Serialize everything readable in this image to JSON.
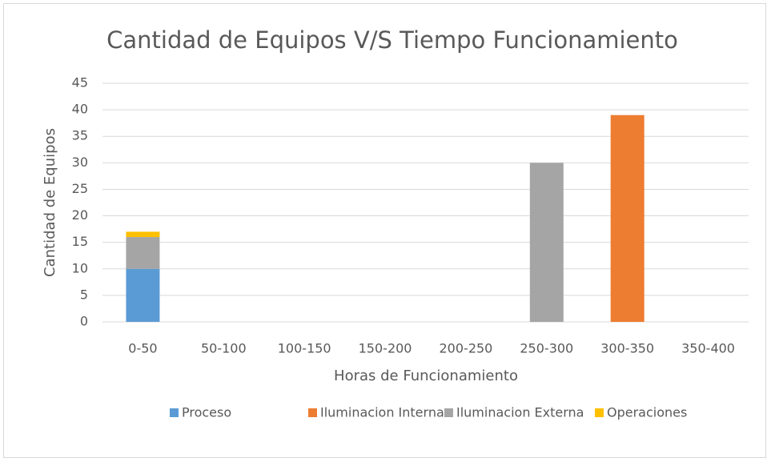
{
  "chart_data": {
    "type": "stacked_bar",
    "title": "Cantidad de Equipos V/S Tiempo Funcionamiento",
    "x_label": "Horas de Funcionamiento",
    "y_label": "Cantidad de Equipos",
    "categories": [
      "0-50",
      "50-100",
      "100-150",
      "150-200",
      "200-250",
      "250-300",
      "300-350",
      "350-400"
    ],
    "series": [
      {
        "name": "Proceso",
        "color": "#5b9bd5",
        "values": [
          10,
          0,
          0,
          0,
          0,
          0,
          0,
          0
        ]
      },
      {
        "name": "Iluminacion Interna",
        "color": "#ed7d31",
        "values": [
          0,
          0,
          0,
          0,
          0,
          0,
          39,
          0
        ]
      },
      {
        "name": "Iluminacion Externa",
        "color": "#a5a5a5",
        "values": [
          6,
          0,
          0,
          0,
          0,
          30,
          0,
          0
        ]
      },
      {
        "name": "Operaciones",
        "color": "#ffc000",
        "values": [
          1,
          0,
          0,
          0,
          0,
          0,
          0,
          0
        ]
      }
    ],
    "ylim": [
      0,
      45
    ],
    "yticks": [
      0,
      5,
      10,
      15,
      20,
      25,
      30,
      35,
      40,
      45
    ],
    "grid": true,
    "legend": "bottom"
  }
}
